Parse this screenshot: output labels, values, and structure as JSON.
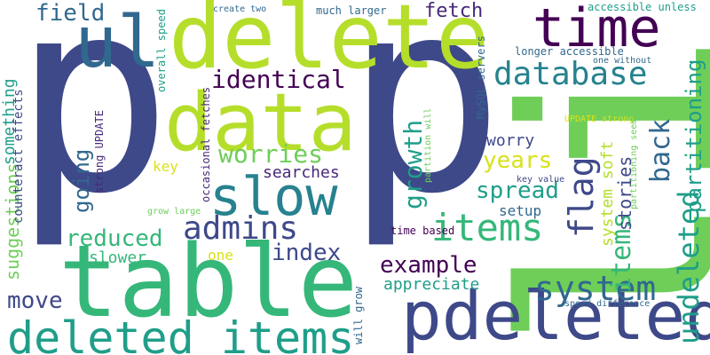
{
  "palette": {
    "background": "#ffffff",
    "navy": "#3e4989",
    "purple": "#482878",
    "deep_purple": "#440154",
    "blue": "#31688e",
    "teal": "#26828e",
    "green_teal": "#1f9e89",
    "green": "#35b779",
    "light_green": "#6ece58",
    "lime": "#b5de2b",
    "yellow": "#d8e219"
  },
  "words": [
    {
      "text": "p",
      "color": "navy",
      "vertical": false
    },
    {
      "text": "p",
      "color": "navy",
      "vertical": false
    },
    {
      "text": "table",
      "color": "green",
      "vertical": false
    },
    {
      "text": "delete",
      "color": "lime",
      "vertical": false
    },
    {
      "text": "li",
      "color": "light_green",
      "vertical": true
    },
    {
      "text": "data",
      "color": "lime",
      "vertical": false
    },
    {
      "text": "ul",
      "color": "blue",
      "vertical": false
    },
    {
      "text": "pdeleted",
      "color": "navy",
      "vertical": false
    },
    {
      "text": "slow",
      "color": "teal",
      "vertical": false
    },
    {
      "text": "deleted items",
      "color": "green_teal",
      "vertical": false
    },
    {
      "text": "time",
      "color": "deep_purple",
      "vertical": false
    },
    {
      "text": "database",
      "color": "teal",
      "vertical": false
    },
    {
      "text": "items",
      "color": "green",
      "vertical": false
    },
    {
      "text": "admins",
      "color": "navy",
      "vertical": false
    },
    {
      "text": "system",
      "color": "blue",
      "vertical": false
    },
    {
      "text": "identical",
      "color": "deep_purple",
      "vertical": false
    },
    {
      "text": "worries",
      "color": "light_green",
      "vertical": false
    },
    {
      "text": "years",
      "color": "yellow",
      "vertical": false
    },
    {
      "text": "spread",
      "color": "green_teal",
      "vertical": false
    },
    {
      "text": "reduced",
      "color": "green",
      "vertical": false
    },
    {
      "text": "index",
      "color": "navy",
      "vertical": false
    },
    {
      "text": "example",
      "color": "deep_purple",
      "vertical": false
    },
    {
      "text": "move",
      "color": "navy",
      "vertical": false
    },
    {
      "text": "field",
      "color": "blue",
      "vertical": false
    },
    {
      "text": "fetch",
      "color": "purple",
      "vertical": false
    },
    {
      "text": "worry",
      "color": "navy",
      "vertical": false
    },
    {
      "text": "searches",
      "color": "purple",
      "vertical": false
    },
    {
      "text": "slower",
      "color": "green",
      "vertical": false
    },
    {
      "text": "appreciate",
      "color": "green_teal",
      "vertical": false
    },
    {
      "text": "setup",
      "color": "blue",
      "vertical": false
    },
    {
      "text": "key",
      "color": "yellow",
      "vertical": false
    },
    {
      "text": "one",
      "color": "yellow",
      "vertical": false
    },
    {
      "text": "time based",
      "color": "deep_purple",
      "vertical": false
    },
    {
      "text": "much larger",
      "color": "blue",
      "vertical": false
    },
    {
      "text": "accessible unless",
      "color": "green_teal",
      "vertical": false
    },
    {
      "text": "longer accessible",
      "color": "blue",
      "vertical": false
    },
    {
      "text": "one without",
      "color": "blue",
      "vertical": false
    },
    {
      "text": "UPDATE strong",
      "color": "yellow",
      "vertical": false
    },
    {
      "text": "create two",
      "color": "blue",
      "vertical": false
    },
    {
      "text": "grow large",
      "color": "light_green",
      "vertical": false
    },
    {
      "text": "key value",
      "color": "navy",
      "vertical": false
    },
    {
      "text": "speed difference",
      "color": "blue",
      "vertical": false
    },
    {
      "text": "going",
      "color": "blue",
      "vertical": true
    },
    {
      "text": "growth",
      "color": "green_teal",
      "vertical": true
    },
    {
      "text": "flag",
      "color": "navy",
      "vertical": true
    },
    {
      "text": "back",
      "color": "blue",
      "vertical": true
    },
    {
      "text": "partitioning",
      "color": "green_teal",
      "vertical": true
    },
    {
      "text": "undeleted",
      "color": "green_teal",
      "vertical": true
    },
    {
      "text": "items",
      "color": "green",
      "vertical": true
    },
    {
      "text": "system soft",
      "color": "lime",
      "vertical": true
    },
    {
      "text": "stories",
      "color": "navy",
      "vertical": true
    },
    {
      "text": "suggestions",
      "color": "light_green",
      "vertical": true
    },
    {
      "text": "something",
      "color": "green_teal",
      "vertical": true
    },
    {
      "text": "counteract effects",
      "color": "navy",
      "vertical": true
    },
    {
      "text": "strong UPDATE",
      "color": "purple",
      "vertical": true
    },
    {
      "text": "overall speed",
      "color": "green_teal",
      "vertical": true
    },
    {
      "text": "occasional fetches",
      "color": "purple",
      "vertical": true
    },
    {
      "text": "MySQL servers",
      "color": "blue",
      "vertical": true
    },
    {
      "text": "partition will",
      "color": "light_green",
      "vertical": true
    },
    {
      "text": "will grow",
      "color": "blue",
      "vertical": true
    },
    {
      "text": "partitioning seems",
      "color": "light_green",
      "vertical": true
    }
  ]
}
